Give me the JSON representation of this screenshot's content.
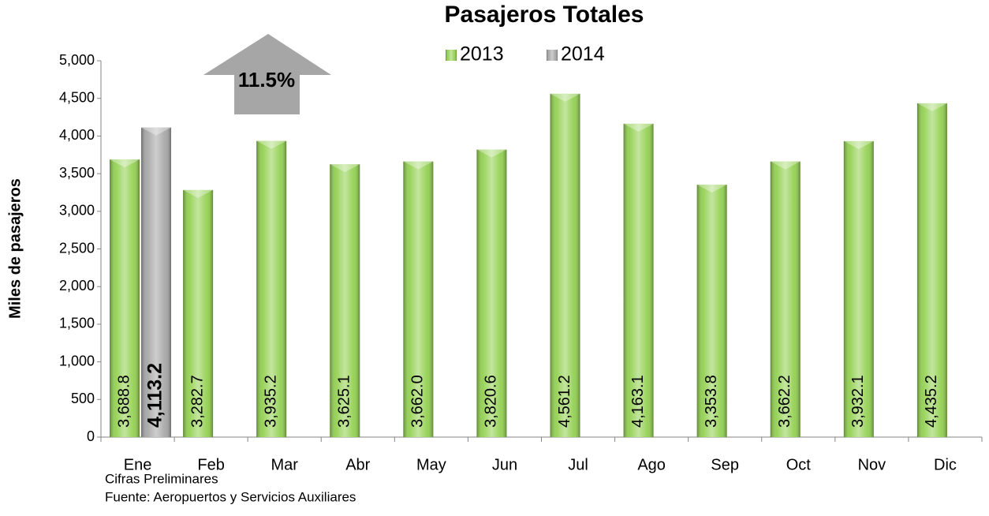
{
  "chart_data": {
    "type": "bar",
    "title": "Pasajeros Totales",
    "y_label": "Miles de pasajeros",
    "categories": [
      "Ene",
      "Feb",
      "Mar",
      "Abr",
      "May",
      "Jun",
      "Jul",
      "Ago",
      "Sep",
      "Oct",
      "Nov",
      "Dic"
    ],
    "series": [
      {
        "name": "2013",
        "color": "#92d050",
        "values": [
          3688.8,
          3282.7,
          3935.2,
          3625.1,
          3662.0,
          3820.6,
          4561.2,
          4163.1,
          3353.8,
          3662.2,
          3932.1,
          4435.2
        ],
        "value_labels": [
          "3,688.8",
          "3,282.7",
          "3,935.2",
          "3,625.1",
          "3,662.0",
          "3,820.6",
          "4,561.2",
          "4,163.1",
          "3,353.8",
          "3,662.2",
          "3,932.1",
          "4,435.2"
        ]
      },
      {
        "name": "2014",
        "color": "#a6a6a6",
        "values": [
          4113.2,
          null,
          null,
          null,
          null,
          null,
          null,
          null,
          null,
          null,
          null,
          null
        ],
        "value_labels": [
          "4,113.2",
          null,
          null,
          null,
          null,
          null,
          null,
          null,
          null,
          null,
          null,
          null
        ]
      }
    ],
    "ylim": [
      0,
      5000
    ],
    "yticks": [
      0,
      500,
      {
        "value": 1000,
        "label": "1,000"
      },
      {
        "value": 1500,
        "label": "1,500"
      },
      {
        "value": 2000,
        "label": "2,000"
      },
      {
        "value": 2500,
        "label": "2,500"
      },
      {
        "value": 3000,
        "label": "3,000"
      },
      {
        "value": 3500,
        "label": "3,500"
      },
      {
        "value": 4000,
        "label": "4,000"
      },
      {
        "value": 4500,
        "label": "4,500"
      },
      {
        "value": 5000,
        "label": "5,000"
      }
    ],
    "legend": "top",
    "annotation": "11.5%",
    "notes": [
      "Cifras Preliminares",
      "Fuente: Aeropuertos y  Servicios Auxiliares"
    ]
  }
}
